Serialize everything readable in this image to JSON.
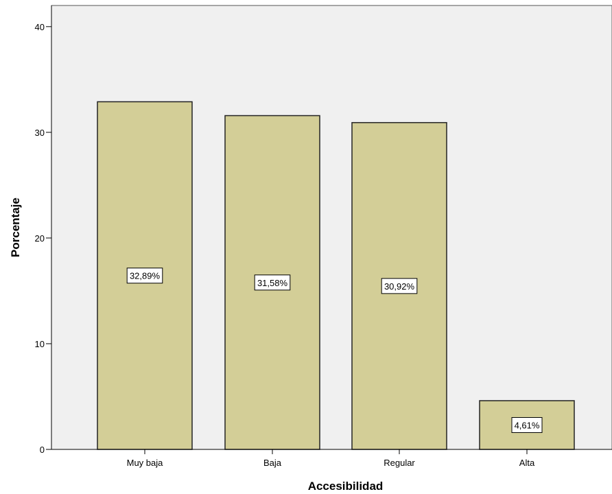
{
  "chart_data": {
    "type": "bar",
    "title": "",
    "xlabel": "Accesibilidad",
    "ylabel": "Porcentaje",
    "categories": [
      "Muy baja",
      "Baja",
      "Regular",
      "Alta"
    ],
    "values": [
      32.89,
      31.58,
      30.92,
      4.61
    ],
    "data_labels": [
      "32,89%",
      "31,58%",
      "30,92%",
      "4,61%"
    ],
    "ylim": [
      0,
      42
    ],
    "yticks": [
      0,
      10,
      20,
      30,
      40
    ],
    "ytick_labels": [
      "0",
      "10",
      "20",
      "30",
      "40"
    ],
    "grid": false,
    "legend": "none",
    "colors": {
      "plot_background": "#f0f0f0",
      "bar_fill": "#d3ce97",
      "bar_stroke": "#222222",
      "label_box_fill": "#ffffff"
    }
  }
}
